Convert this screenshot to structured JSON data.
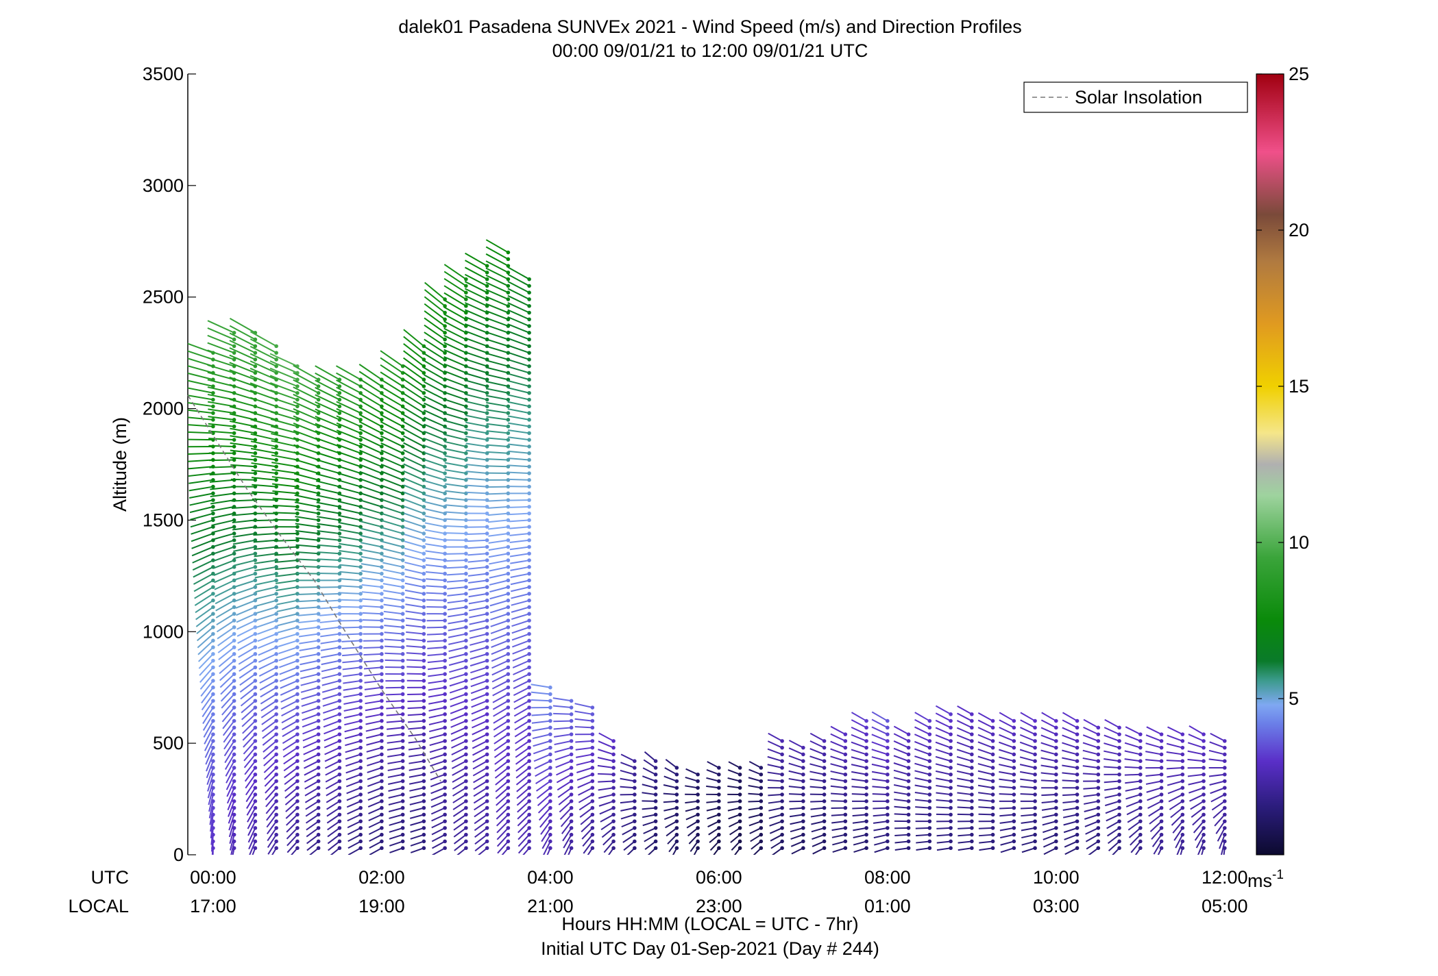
{
  "chart_data": {
    "type": "wind_barb_profile",
    "title": "dalek01 Pasadena SUNVEx 2021 - Wind Speed (m/s) and Direction Profiles",
    "subtitle": "00:00 09/01/21 to 12:00 09/01/21  UTC",
    "ylabel": "Altitude (m)",
    "ylim": [
      0,
      3500
    ],
    "yticks": [
      0,
      500,
      1000,
      1500,
      2000,
      2500,
      3000,
      3500
    ],
    "xlim_hours": [
      -0.3,
      12.4
    ],
    "xlabel": "Hours HH:MM  (LOCAL = UTC - 7hr)",
    "xlabel2": "Initial UTC Day 01-Sep-2021 (Day # 244)",
    "row_labels": {
      "utc": "UTC",
      "local": "LOCAL"
    },
    "x_ticks": [
      {
        "hour": 0,
        "utc": "00:00",
        "local": "17:00"
      },
      {
        "hour": 2,
        "utc": "02:00",
        "local": "19:00"
      },
      {
        "hour": 4,
        "utc": "04:00",
        "local": "21:00"
      },
      {
        "hour": 6,
        "utc": "06:00",
        "local": "23:00"
      },
      {
        "hour": 8,
        "utc": "08:00",
        "local": "01:00"
      },
      {
        "hour": 10,
        "utc": "10:00",
        "local": "03:00"
      },
      {
        "hour": 12,
        "utc": "12:00",
        "local": "05:00"
      }
    ],
    "legend": {
      "label": "Solar Insolation",
      "placement": "top-right",
      "line_color": "#777777"
    },
    "colorbar": {
      "min": 0,
      "max": 25,
      "ticks": [
        5,
        10,
        15,
        20,
        25
      ],
      "unit_label": "ms",
      "unit_exponent": "-1",
      "stops": [
        {
          "v": 0,
          "c": "#0c0a2e"
        },
        {
          "v": 1.5,
          "c": "#2a1c7a"
        },
        {
          "v": 3,
          "c": "#5a2fc8"
        },
        {
          "v": 4.2,
          "c": "#6b7fe8"
        },
        {
          "v": 4.8,
          "c": "#7fa8f2"
        },
        {
          "v": 5.6,
          "c": "#3a9a8a"
        },
        {
          "v": 6.2,
          "c": "#0a7a2a"
        },
        {
          "v": 7.5,
          "c": "#0a8a0a"
        },
        {
          "v": 9.5,
          "c": "#3aa43a"
        },
        {
          "v": 11.5,
          "c": "#9ed39e"
        },
        {
          "v": 12.5,
          "c": "#b0b0b0"
        },
        {
          "v": 13.5,
          "c": "#f5e68a"
        },
        {
          "v": 15,
          "c": "#f0d000"
        },
        {
          "v": 17,
          "c": "#e09a20"
        },
        {
          "v": 19,
          "c": "#b07a40"
        },
        {
          "v": 20.5,
          "c": "#7a4a3a"
        },
        {
          "v": 22.5,
          "c": "#f0508a"
        },
        {
          "v": 25,
          "c": "#a00010"
        }
      ]
    },
    "solar_insolation_curve": [
      [
        -0.3,
        2060
      ],
      [
        0.0,
        1880
      ],
      [
        0.4,
        1640
      ],
      [
        0.8,
        1430
      ],
      [
        1.2,
        1230
      ],
      [
        1.6,
        980
      ],
      [
        2.0,
        740
      ],
      [
        2.4,
        520
      ],
      [
        2.7,
        330
      ]
    ],
    "profiles": [
      {
        "t": 0.0,
        "top": 2250,
        "spd_top": 9.0,
        "dir_top": 290,
        "spd_bot": 3.0,
        "dir_bot": 180
      },
      {
        "t": 0.25,
        "top": 2350,
        "spd_top": 9.5,
        "dir_top": 295,
        "spd_bot": 2.6,
        "dir_bot": 190
      },
      {
        "t": 0.5,
        "top": 2350,
        "spd_top": 9.5,
        "dir_top": 300,
        "spd_bot": 2.4,
        "dir_bot": 200
      },
      {
        "t": 0.75,
        "top": 2300,
        "spd_top": 9.8,
        "dir_top": 300,
        "spd_bot": 2.2,
        "dir_bot": 210
      },
      {
        "t": 1.0,
        "top": 2200,
        "spd_top": 10.0,
        "dir_top": 295,
        "spd_bot": 2.0,
        "dir_bot": 220
      },
      {
        "t": 1.25,
        "top": 2150,
        "spd_top": 9.5,
        "dir_top": 300,
        "spd_bot": 1.8,
        "dir_bot": 230
      },
      {
        "t": 1.5,
        "top": 2150,
        "spd_top": 9.0,
        "dir_top": 300,
        "spd_bot": 1.8,
        "dir_bot": 230
      },
      {
        "t": 1.75,
        "top": 2150,
        "spd_top": 9.0,
        "dir_top": 300,
        "spd_bot": 1.6,
        "dir_bot": 240
      },
      {
        "t": 2.0,
        "top": 2150,
        "spd_top": 8.5,
        "dir_top": 305,
        "spd_bot": 1.5,
        "dir_bot": 240
      },
      {
        "t": 2.25,
        "top": 2200,
        "spd_top": 8.5,
        "dir_top": 305,
        "spd_bot": 1.5,
        "dir_bot": 250
      },
      {
        "t": 2.5,
        "top": 2300,
        "spd_top": 8.0,
        "dir_top": 310,
        "spd_bot": 1.5,
        "dir_bot": 250
      },
      {
        "t": 2.75,
        "top": 2500,
        "spd_top": 8.0,
        "dir_top": 310,
        "spd_bot": 1.8,
        "dir_bot": 240
      },
      {
        "t": 3.0,
        "top": 2600,
        "spd_top": 8.0,
        "dir_top": 305,
        "spd_bot": 2.0,
        "dir_bot": 230
      },
      {
        "t": 3.25,
        "top": 2650,
        "spd_top": 7.5,
        "dir_top": 300,
        "spd_bot": 2.2,
        "dir_bot": 230
      },
      {
        "t": 3.5,
        "top": 2700,
        "spd_top": 7.5,
        "dir_top": 300,
        "spd_bot": 2.5,
        "dir_bot": 220
      },
      {
        "t": 3.75,
        "top": 2600,
        "spd_top": 7.0,
        "dir_top": 300,
        "spd_bot": 2.5,
        "dir_bot": 220
      },
      {
        "t": 4.0,
        "top": 760,
        "spd_top": 4.5,
        "dir_top": 280,
        "spd_bot": 2.5,
        "dir_bot": 200
      },
      {
        "t": 4.25,
        "top": 700,
        "spd_top": 4.0,
        "dir_top": 280,
        "spd_bot": 2.2,
        "dir_bot": 200
      },
      {
        "t": 4.5,
        "top": 680,
        "spd_top": 3.8,
        "dir_top": 285,
        "spd_bot": 2.0,
        "dir_bot": 210
      },
      {
        "t": 4.75,
        "top": 520,
        "spd_top": 3.0,
        "dir_top": 300,
        "spd_bot": 1.8,
        "dir_bot": 210
      },
      {
        "t": 5.0,
        "top": 440,
        "spd_top": 2.2,
        "dir_top": 300,
        "spd_bot": 1.5,
        "dir_bot": 220
      },
      {
        "t": 5.25,
        "top": 420,
        "spd_top": 1.8,
        "dir_top": 310,
        "spd_bot": 1.2,
        "dir_bot": 220
      },
      {
        "t": 5.5,
        "top": 400,
        "spd_top": 1.5,
        "dir_top": 310,
        "spd_bot": 1.0,
        "dir_bot": 200
      },
      {
        "t": 5.75,
        "top": 380,
        "spd_top": 1.2,
        "dir_top": 300,
        "spd_bot": 0.8,
        "dir_bot": 200
      },
      {
        "t": 6.0,
        "top": 400,
        "spd_top": 1.2,
        "dir_top": 300,
        "spd_bot": 0.6,
        "dir_bot": 210
      },
      {
        "t": 6.25,
        "top": 400,
        "spd_top": 1.0,
        "dir_top": 300,
        "spd_bot": 0.6,
        "dir_bot": 210
      },
      {
        "t": 6.5,
        "top": 400,
        "spd_top": 1.2,
        "dir_top": 300,
        "spd_bot": 0.8,
        "dir_bot": 220
      },
      {
        "t": 6.75,
        "top": 520,
        "spd_top": 2.6,
        "dir_top": 300,
        "spd_bot": 1.0,
        "dir_bot": 230
      },
      {
        "t": 7.0,
        "top": 500,
        "spd_top": 2.6,
        "dir_top": 300,
        "spd_bot": 1.0,
        "dir_bot": 240
      },
      {
        "t": 7.25,
        "top": 520,
        "spd_top": 2.6,
        "dir_top": 300,
        "spd_bot": 1.0,
        "dir_bot": 240
      },
      {
        "t": 7.5,
        "top": 560,
        "spd_top": 3.0,
        "dir_top": 300,
        "spd_bot": 1.2,
        "dir_bot": 250
      },
      {
        "t": 7.75,
        "top": 600,
        "spd_top": 3.2,
        "dir_top": 300,
        "spd_bot": 1.2,
        "dir_bot": 250
      },
      {
        "t": 8.0,
        "top": 600,
        "spd_top": 3.6,
        "dir_top": 300,
        "spd_bot": 1.4,
        "dir_bot": 250
      },
      {
        "t": 8.25,
        "top": 560,
        "spd_top": 3.0,
        "dir_top": 300,
        "spd_bot": 1.4,
        "dir_bot": 260
      },
      {
        "t": 8.5,
        "top": 600,
        "spd_top": 3.2,
        "dir_top": 300,
        "spd_bot": 1.4,
        "dir_bot": 260
      },
      {
        "t": 8.75,
        "top": 640,
        "spd_top": 3.2,
        "dir_top": 300,
        "spd_bot": 1.5,
        "dir_bot": 260
      },
      {
        "t": 9.0,
        "top": 640,
        "spd_top": 3.0,
        "dir_top": 300,
        "spd_bot": 1.5,
        "dir_bot": 260
      },
      {
        "t": 9.25,
        "top": 620,
        "spd_top": 3.0,
        "dir_top": 300,
        "spd_bot": 1.5,
        "dir_bot": 260
      },
      {
        "t": 9.5,
        "top": 600,
        "spd_top": 3.0,
        "dir_top": 300,
        "spd_bot": 1.5,
        "dir_bot": 250
      },
      {
        "t": 9.75,
        "top": 600,
        "spd_top": 3.0,
        "dir_top": 300,
        "spd_bot": 1.4,
        "dir_bot": 250
      },
      {
        "t": 10.0,
        "top": 600,
        "spd_top": 3.0,
        "dir_top": 300,
        "spd_bot": 1.4,
        "dir_bot": 240
      },
      {
        "t": 10.25,
        "top": 600,
        "spd_top": 3.0,
        "dir_top": 300,
        "spd_bot": 1.4,
        "dir_bot": 240
      },
      {
        "t": 10.5,
        "top": 580,
        "spd_top": 3.0,
        "dir_top": 300,
        "spd_bot": 1.5,
        "dir_bot": 230
      },
      {
        "t": 10.75,
        "top": 580,
        "spd_top": 3.0,
        "dir_top": 300,
        "spd_bot": 1.6,
        "dir_bot": 220
      },
      {
        "t": 11.0,
        "top": 560,
        "spd_top": 3.0,
        "dir_top": 300,
        "spd_bot": 1.8,
        "dir_bot": 210
      },
      {
        "t": 11.25,
        "top": 560,
        "spd_top": 3.0,
        "dir_top": 300,
        "spd_bot": 2.0,
        "dir_bot": 200
      },
      {
        "t": 11.5,
        "top": 560,
        "spd_top": 3.0,
        "dir_top": 300,
        "spd_bot": 2.0,
        "dir_bot": 190
      },
      {
        "t": 11.75,
        "top": 540,
        "spd_top": 3.0,
        "dir_top": 300,
        "spd_bot": 2.0,
        "dir_bot": 190
      },
      {
        "t": 12.0,
        "top": 520,
        "spd_top": 2.8,
        "dir_top": 300,
        "spd_bot": 2.0,
        "dir_bot": 180
      }
    ]
  }
}
